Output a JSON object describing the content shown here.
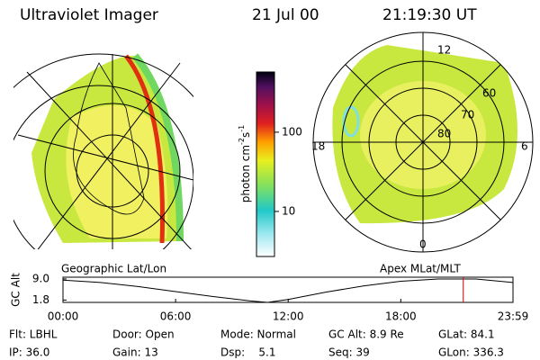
{
  "header": {
    "instrument": "Ultraviolet Imager",
    "date": "21 Jul 00",
    "time": "21:19:30 UT"
  },
  "left_image": {
    "label": "Geographic Lat/Lon"
  },
  "right_image": {
    "label": "Apex MLat/MLT",
    "mlt_labels": [
      "12",
      "18",
      "6",
      "0"
    ],
    "mlat_labels": [
      "60",
      "70",
      "80"
    ]
  },
  "colorbar": {
    "unit": "photon cm",
    "exp1": "-2",
    "unit2": "s",
    "exp2": "-1",
    "scale": "log",
    "range": [
      2.7,
      575
    ],
    "ticks": [
      10,
      100
    ]
  },
  "timeline": {
    "type": "line",
    "ylabel": "GC Alt",
    "x": [
      0,
      2,
      4,
      6,
      8,
      10,
      10.9,
      12,
      14,
      16,
      18,
      20,
      22,
      23.98
    ],
    "values": [
      8.6,
      7.8,
      6.4,
      4.7,
      3.0,
      1.5,
      1.0,
      2.0,
      4.5,
      6.6,
      8.2,
      9.0,
      9.0,
      7.8
    ],
    "color": "#000000",
    "xlim": [
      0,
      23.98
    ],
    "ylim": [
      1.0,
      9.6
    ],
    "xticks": [
      {
        "value": 0,
        "label": "00:00"
      },
      {
        "value": 6,
        "label": "06:00"
      },
      {
        "value": 12,
        "label": "12:00"
      },
      {
        "value": 18,
        "label": "18:00"
      },
      {
        "value": 23.98,
        "label": "23:59"
      }
    ],
    "yticks": [
      {
        "value": 9.0,
        "label": "9.0"
      },
      {
        "value": 1.8,
        "label": "1.8"
      }
    ],
    "marker": 21.33,
    "marker_color": "#cc0000"
  },
  "status": [
    [
      "Flt: LBHL",
      "Door: Open",
      "Mode: Normal",
      "GC Alt: 8.9 Re",
      "GLat: 84.1"
    ],
    [
      "IP: 36.0",
      "Gain: 13",
      "Dsp:    5.1",
      "Seq: 39",
      "GLon: 336.3"
    ]
  ]
}
